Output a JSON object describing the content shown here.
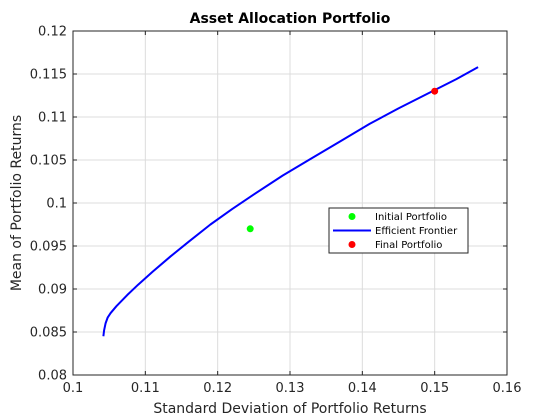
{
  "chart_data": {
    "type": "line",
    "title": "Asset Allocation Portfolio",
    "xlabel": "Standard Deviation of Portfolio Returns",
    "ylabel": "Mean of Portfolio Returns",
    "xlim": [
      0.1,
      0.16
    ],
    "ylim": [
      0.08,
      0.12
    ],
    "xticks": [
      0.1,
      0.11,
      0.12,
      0.13,
      0.14,
      0.15,
      0.16
    ],
    "yticks": [
      0.08,
      0.085,
      0.09,
      0.095,
      0.1,
      0.105,
      0.11,
      0.115,
      0.12
    ],
    "xtick_labels": [
      "0.1",
      "0.11",
      "0.12",
      "0.13",
      "0.14",
      "0.15",
      "0.16"
    ],
    "ytick_labels": [
      "0.08",
      "0.085",
      "0.09",
      "0.095",
      "0.1",
      "0.105",
      "0.11",
      "0.115",
      "0.12"
    ],
    "grid": true,
    "legend_position": "center-right",
    "series": [
      {
        "name": "Initial Portfolio",
        "kind": "marker",
        "color": "#00ff00",
        "points": [
          [
            0.1245,
            0.097
          ]
        ]
      },
      {
        "name": "Efficient Frontier",
        "kind": "line",
        "color": "#0000ff",
        "points": [
          [
            0.1042,
            0.0845
          ],
          [
            0.1043,
            0.0852
          ],
          [
            0.1045,
            0.086
          ],
          [
            0.1048,
            0.0867
          ],
          [
            0.1052,
            0.0872
          ],
          [
            0.106,
            0.088
          ],
          [
            0.1075,
            0.0893
          ],
          [
            0.109,
            0.0905
          ],
          [
            0.111,
            0.092
          ],
          [
            0.1135,
            0.0938
          ],
          [
            0.116,
            0.0955
          ],
          [
            0.119,
            0.0975
          ],
          [
            0.122,
            0.0993
          ],
          [
            0.125,
            0.101
          ],
          [
            0.129,
            0.1032
          ],
          [
            0.133,
            0.1052
          ],
          [
            0.137,
            0.1072
          ],
          [
            0.141,
            0.1092
          ],
          [
            0.145,
            0.111
          ],
          [
            0.149,
            0.1127
          ],
          [
            0.153,
            0.1144
          ],
          [
            0.156,
            0.1158
          ]
        ]
      },
      {
        "name": "Final Portfolio",
        "kind": "marker",
        "color": "#ff0000",
        "points": [
          [
            0.15,
            0.113
          ]
        ]
      }
    ]
  }
}
